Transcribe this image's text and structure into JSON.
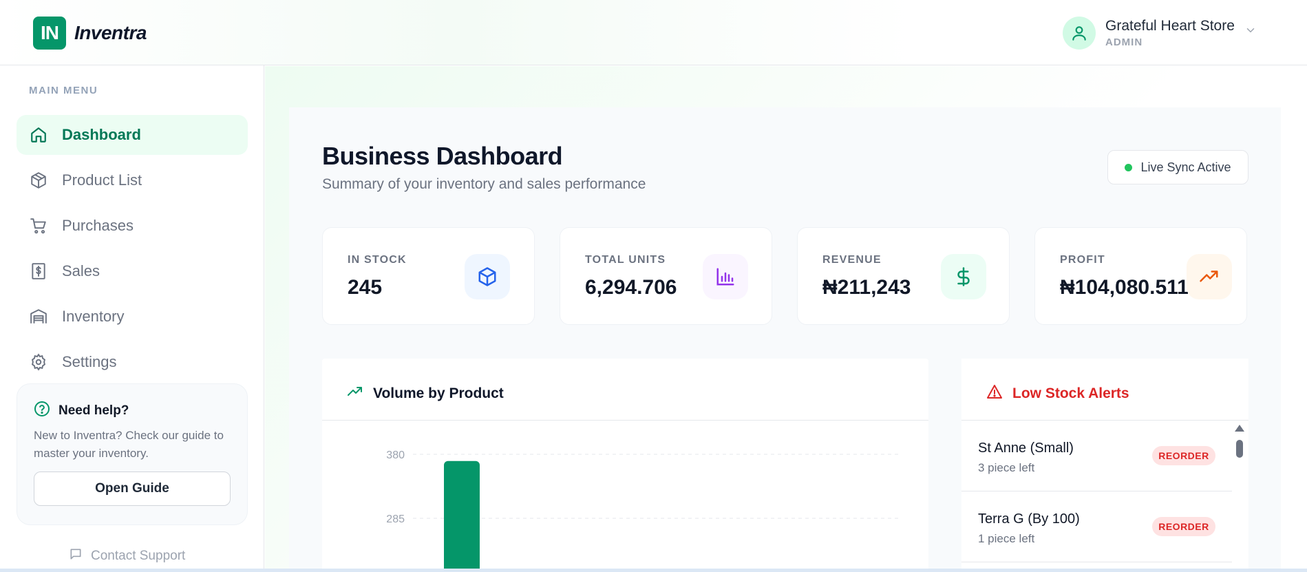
{
  "app": {
    "logo_mark": "IN",
    "name": "Inventra"
  },
  "user": {
    "name": "Grateful Heart Store",
    "role": "ADMIN"
  },
  "sidebar": {
    "section_label": "MAIN MENU",
    "items": [
      {
        "label": "Dashboard",
        "icon": "home-icon",
        "active": true
      },
      {
        "label": "Product List",
        "icon": "box-icon"
      },
      {
        "label": "Purchases",
        "icon": "cart-icon"
      },
      {
        "label": "Sales",
        "icon": "receipt-dollar-icon"
      },
      {
        "label": "Inventory",
        "icon": "warehouse-icon"
      },
      {
        "label": "Settings",
        "icon": "gear-icon"
      }
    ],
    "help": {
      "title": "Need help?",
      "text": "New to Inventra? Check our guide to master your inventory.",
      "button": "Open Guide"
    },
    "support": "Contact Support"
  },
  "page": {
    "title": "Business Dashboard",
    "subtitle": "Summary of your inventory and sales performance",
    "sync_status": "Live Sync Active"
  },
  "stats": [
    {
      "label": "IN STOCK",
      "value": "245",
      "icon": "cube-icon",
      "color": "#2563eb",
      "bg": "#eff6ff"
    },
    {
      "label": "TOTAL UNITS",
      "value": "6,294.706",
      "icon": "bar-chart-icon",
      "color": "#9333ea",
      "bg": "#faf5ff"
    },
    {
      "label": "REVENUE",
      "value": "₦211,243",
      "icon": "dollar-icon",
      "color": "#059669",
      "bg": "#ecfdf5"
    },
    {
      "label": "PROFIT",
      "value": "₦104,080.511",
      "icon": "trending-up-icon",
      "color": "#ea580c",
      "bg": "#fff7ed"
    }
  ],
  "volume_chart": {
    "title": "Volume by Product"
  },
  "chart_data": {
    "type": "bar",
    "title": "Volume by Product",
    "categories": [
      ""
    ],
    "values": [
      370
    ],
    "yticks": [
      285,
      380
    ],
    "ylim": [
      0,
      380
    ],
    "grid": true,
    "bar_color": "#059669"
  },
  "alerts": {
    "title": "Low Stock Alerts",
    "items": [
      {
        "name": "St Anne (Small)",
        "qty": "3 piece left",
        "action": "REORDER"
      },
      {
        "name": "Terra G (By 100)",
        "qty": "1 piece left",
        "action": "REORDER"
      }
    ]
  }
}
